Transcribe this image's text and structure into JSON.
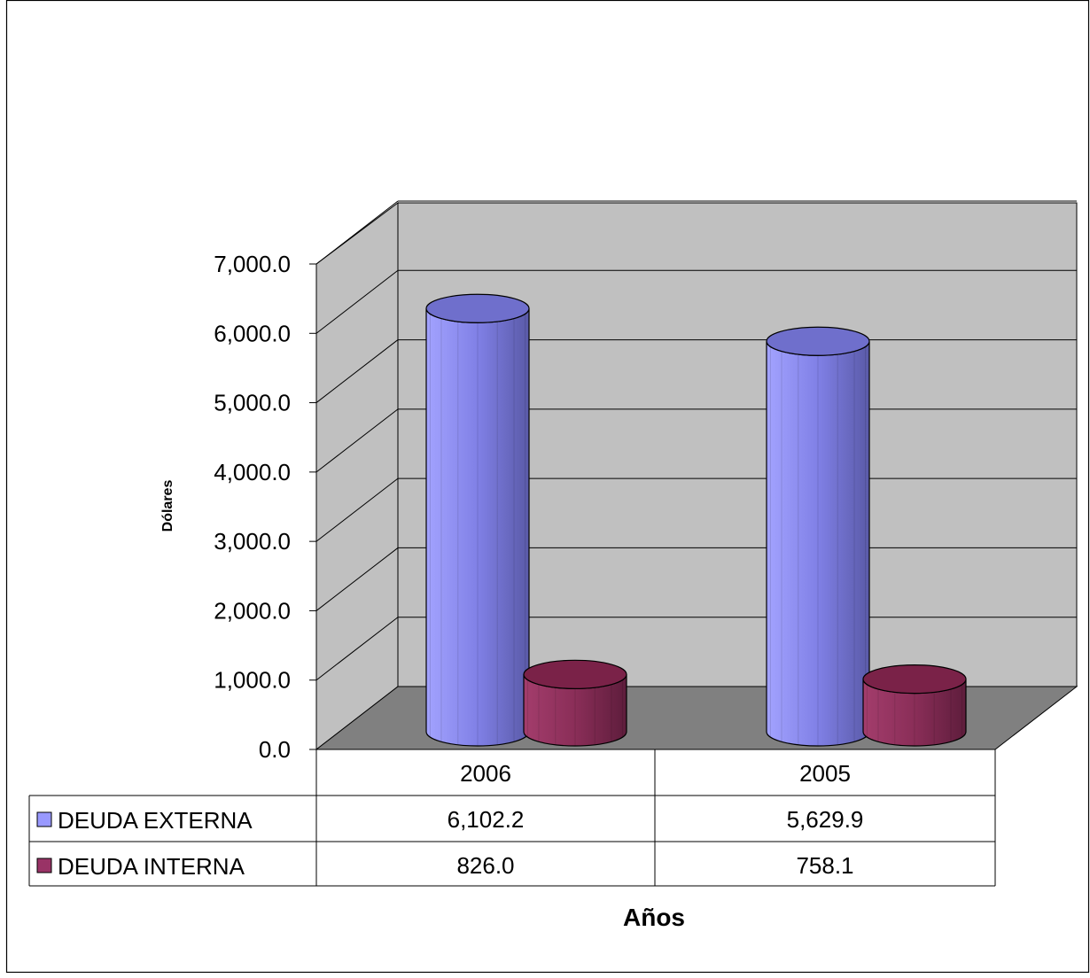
{
  "chart_data": {
    "type": "bar",
    "categories": [
      "2006",
      "2005"
    ],
    "series": [
      {
        "name": "DEUDA EXTERNA",
        "values": [
          6102.2,
          5629.9
        ],
        "labels": [
          "6,102.2",
          "5,629.9"
        ],
        "color": "#9999ff"
      },
      {
        "name": "DEUDA INTERNA",
        "values": [
          826.0,
          758.1
        ],
        "labels": [
          "826.0",
          "758.1"
        ],
        "color": "#993366"
      }
    ],
    "title": "",
    "xlabel": "Años",
    "ylabel": "Dólares",
    "ylim": [
      0,
      7000
    ],
    "yticks": [
      "0.0",
      "1,000.0",
      "2,000.0",
      "3,000.0",
      "4,000.0",
      "5,000.0",
      "6,000.0",
      "7,000.0"
    ],
    "grid": true,
    "style": "3d-cylinder",
    "legend": "data-table-below",
    "wall_color": "#c0c0c0",
    "floor_color": "#808080"
  }
}
